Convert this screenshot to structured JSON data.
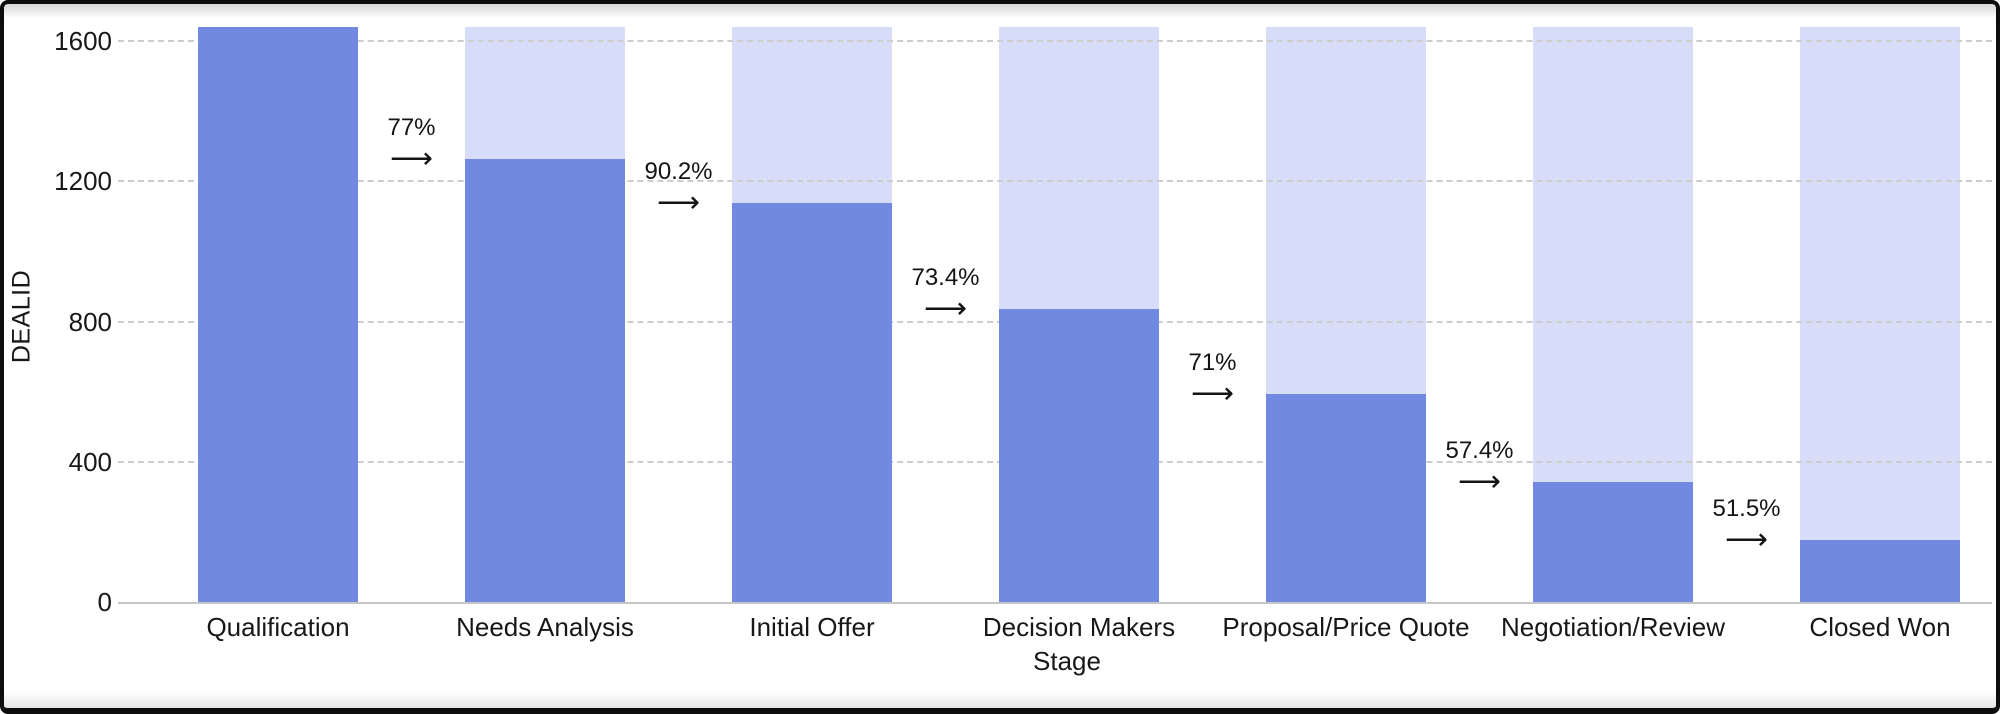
{
  "chart_data": {
    "type": "bar",
    "variant": "funnel",
    "title": "",
    "xlabel": "Stage",
    "ylabel": "DEALID",
    "categories": [
      "Qualification",
      "Needs Analysis",
      "Initial Offer",
      "Decision Makers",
      "Proposal/Price Quote",
      "Negotiation/Review",
      "Closed Won"
    ],
    "values": [
      1640,
      1263,
      1139,
      836,
      594,
      341,
      176
    ],
    "background_bar_value": 1640,
    "conversion_rates": [
      "77%",
      "90.2%",
      "73.4%",
      "71%",
      "57.4%",
      "51.5%"
    ],
    "y_ticks": [
      0,
      400,
      800,
      1200,
      1600
    ],
    "ylim": [
      0,
      1640
    ],
    "grid": "horizontal-dashed",
    "legend_position": "none",
    "colors": {
      "bar": "#7289e1",
      "bar_background": "#d7ddf8",
      "gridline": "#cdcdcd",
      "axis_line": "#c6c6c6",
      "text": "#1c1c1c"
    }
  },
  "icons": {
    "arrow_right": "⟶"
  }
}
